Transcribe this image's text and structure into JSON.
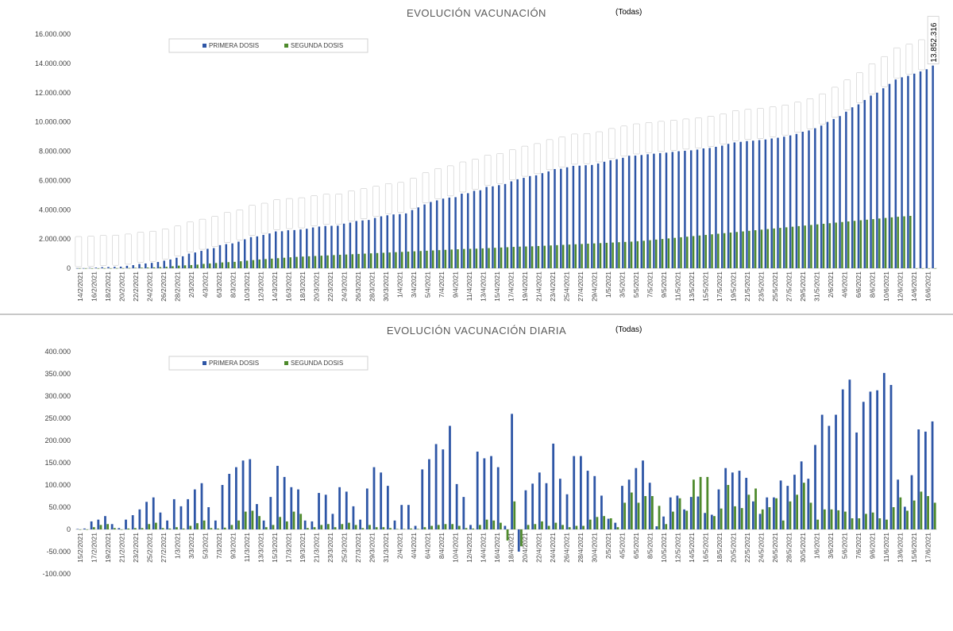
{
  "chart_data": [
    {
      "type": "bar",
      "title": "EVOLUCIÓN VACUNACIÓN",
      "filter": "(Todas)",
      "xlabel": "",
      "ylabel": "",
      "ylim": [
        0,
        16000000
      ],
      "y_ticks": [
        "0",
        "2.000.000",
        "4.000.000",
        "6.000.000",
        "8.000.000",
        "10.000.000",
        "12.000.000",
        "14.000.000",
        "16.000.000"
      ],
      "legend_position": "top-left",
      "grid": false,
      "last_label": "13.852.316",
      "x_tick_labels": [
        "14/2/2021",
        "16/2/2021",
        "18/2/2021",
        "20/2/2021",
        "22/2/2021",
        "24/2/2021",
        "26/2/2021",
        "28/2/2021",
        "2/3/2021",
        "4/3/2021",
        "6/3/2021",
        "8/3/2021",
        "10/3/2021",
        "12/3/2021",
        "14/3/2021",
        "16/3/2021",
        "18/3/2021",
        "20/3/2021",
        "22/3/2021",
        "24/3/2021",
        "26/3/2021",
        "28/3/2021",
        "30/3/2021",
        "1/4/2021",
        "3/4/2021",
        "5/4/2021",
        "7/4/2021",
        "9/4/2021",
        "11/4/2021",
        "13/4/2021",
        "15/4/2021",
        "17/4/2021",
        "19/4/2021",
        "21/4/2021",
        "23/4/2021",
        "25/4/2021",
        "27/4/2021",
        "29/4/2021",
        "1/5/2021",
        "3/5/2021",
        "5/5/2021",
        "7/5/2021",
        "9/5/2021",
        "11/5/2021",
        "13/5/2021",
        "15/5/2021",
        "17/5/2021",
        "19/5/2021",
        "21/5/2021",
        "23/5/2021",
        "25/5/2021",
        "27/5/2021",
        "29/5/2021",
        "31/5/2021",
        "2/6/2021",
        "4/6/2021",
        "6/6/2021",
        "8/6/2021",
        "10/6/2021",
        "12/6/2021",
        "14/6/2021",
        "16/6/2021"
      ],
      "categories_start": "14/2/2021",
      "categories_end": "17/6/2021",
      "series": [
        {
          "name": "PRIMERA DOSIS",
          "color": "#2e56a6",
          "values": [
            2000,
            5000,
            23000,
            45000,
            75000,
            85000,
            97000,
            110000,
            170000,
            215000,
            295000,
            330000,
            370000,
            430000,
            520000,
            600000,
            720000,
            820000,
            1000000,
            1080000,
            1190000,
            1330000,
            1380000,
            1580000,
            1650000,
            1700000,
            1820000,
            1980000,
            2130000,
            2180000,
            2280000,
            2380000,
            2520000,
            2530000,
            2600000,
            2610000,
            2650000,
            2700000,
            2790000,
            2850000,
            2890000,
            2900000,
            2910000,
            3050000,
            3120000,
            3230000,
            3270000,
            3300000,
            3440000,
            3550000,
            3620000,
            3680000,
            3700000,
            3750000,
            3980000,
            4160000,
            4360000,
            4530000,
            4640000,
            4760000,
            4830000,
            4860000,
            5100000,
            5130000,
            5290000,
            5330000,
            5560000,
            5600000,
            5680000,
            5760000,
            5940000,
            6080000,
            6180000,
            6300000,
            6350000,
            6500000,
            6620000,
            6780000,
            6800000,
            6900000,
            7000000,
            7010000,
            7040000,
            7060000,
            7160000,
            7280000,
            7380000,
            7450000,
            7550000,
            7690000,
            7700000,
            7740000,
            7790000,
            7830000,
            7870000,
            7900000,
            7950000,
            8000000,
            8030000,
            8060000,
            8110000,
            8190000,
            8220000,
            8300000,
            8380000,
            8500000,
            8600000,
            8640000,
            8690000,
            8720000,
            8760000,
            8800000,
            8870000,
            8920000,
            8990000,
            9080000,
            9180000,
            9330000,
            9420000,
            9570000,
            9750000,
            10000000,
            10200000,
            10400000,
            10700000,
            11000000,
            11200000,
            11500000,
            11800000,
            12000000,
            12300000,
            12600000,
            12900000,
            13050000,
            13150000,
            13300000,
            13450000,
            13600000,
            13852316
          ]
        },
        {
          "name": "SEGUNDA DOSIS",
          "color": "#4e8a2c",
          "values": [
            0,
            0,
            0,
            0,
            0,
            0,
            5000,
            5000,
            15000,
            30000,
            40000,
            50000,
            60000,
            80000,
            100000,
            140000,
            180000,
            200000,
            220000,
            250000,
            300000,
            330000,
            360000,
            400000,
            420000,
            440000,
            480000,
            520000,
            560000,
            600000,
            630000,
            660000,
            690000,
            720000,
            750000,
            780000,
            800000,
            820000,
            840000,
            860000,
            880000,
            900000,
            920000,
            940000,
            960000,
            980000,
            1000000,
            1020000,
            1040000,
            1060000,
            1080000,
            1100000,
            1120000,
            1140000,
            1160000,
            1180000,
            1200000,
            1220000,
            1240000,
            1260000,
            1280000,
            1300000,
            1320000,
            1330000,
            1340000,
            1360000,
            1380000,
            1400000,
            1420000,
            1440000,
            1460000,
            1480000,
            1490000,
            1500000,
            1520000,
            1540000,
            1560000,
            1580000,
            1600000,
            1620000,
            1640000,
            1660000,
            1680000,
            1700000,
            1720000,
            1740000,
            1760000,
            1780000,
            1800000,
            1820000,
            1850000,
            1880000,
            1920000,
            1960000,
            2000000,
            2040000,
            2080000,
            2120000,
            2160000,
            2200000,
            2240000,
            2280000,
            2320000,
            2360000,
            2400000,
            2440000,
            2480000,
            2520000,
            2560000,
            2600000,
            2640000,
            2680000,
            2720000,
            2760000,
            2800000,
            2840000,
            2880000,
            2920000,
            2960000,
            3000000,
            3040000,
            3080000,
            3120000,
            3160000,
            3200000,
            3240000,
            3280000,
            3320000,
            3360000,
            3400000,
            3440000,
            3480000,
            3520000,
            3550000,
            3580000
          ]
        }
      ]
    },
    {
      "type": "bar",
      "title": "EVOLUCIÓN VACUNACIÓN DIARIA",
      "filter": "(Todas)",
      "xlabel": "",
      "ylabel": "",
      "ylim": [
        -100000,
        400000
      ],
      "y_ticks": [
        "-100.000",
        "-50.000",
        "0",
        "50.000",
        "100.000",
        "150.000",
        "200.000",
        "250.000",
        "300.000",
        "350.000",
        "400.000"
      ],
      "legend_position": "top-left",
      "grid": false,
      "x_tick_labels": [
        "15/2/2021",
        "17/2/2021",
        "19/2/2021",
        "21/2/2021",
        "23/2/2021",
        "25/2/2021",
        "27/2/2021",
        "1/3/2021",
        "3/3/2021",
        "5/3/2021",
        "7/3/2021",
        "9/3/2021",
        "11/3/2021",
        "13/3/2021",
        "15/3/2021",
        "17/3/2021",
        "19/3/2021",
        "21/3/2021",
        "23/3/2021",
        "25/3/2021",
        "27/3/2021",
        "29/3/2021",
        "31/3/2021",
        "2/4/2021",
        "4/4/2021",
        "6/4/2021",
        "8/4/2021",
        "10/4/2021",
        "12/4/2021",
        "14/4/2021",
        "16/4/2021",
        "18/4/2021",
        "20/4/2021",
        "22/4/2021",
        "24/4/2021",
        "26/4/2021",
        "28/4/2021",
        "30/4/2021",
        "2/5/2021",
        "4/5/2021",
        "6/5/2021",
        "8/5/2021",
        "10/5/2021",
        "12/5/2021",
        "14/5/2021",
        "16/5/2021",
        "18/5/2021",
        "20/5/2021",
        "22/5/2021",
        "24/5/2021",
        "26/5/2021",
        "28/5/2021",
        "30/5/2021",
        "1/6/2021",
        "3/6/2021",
        "5/6/2021",
        "7/6/2021",
        "9/6/2021",
        "11/6/2021",
        "13/6/2021",
        "15/6/2021",
        "17/6/2021"
      ],
      "series": [
        {
          "name": "PRIMERA DOSIS",
          "color": "#2e56a6",
          "values": [
            1000,
            2000,
            18000,
            22000,
            30000,
            12000,
            3000,
            22000,
            32000,
            45000,
            62000,
            72000,
            38000,
            20000,
            68000,
            52000,
            68000,
            90000,
            104000,
            50000,
            20000,
            100000,
            125000,
            140000,
            155000,
            158000,
            57000,
            20000,
            73000,
            143000,
            118000,
            95000,
            90000,
            20000,
            18000,
            82000,
            78000,
            35000,
            95000,
            85000,
            52000,
            22000,
            92000,
            140000,
            128000,
            98000,
            20000,
            55000,
            55000,
            8000,
            135000,
            158000,
            192000,
            180000,
            233000,
            102000,
            73000,
            10000,
            175000,
            160000,
            165000,
            140000,
            8000,
            260000,
            -50000,
            88000,
            103000,
            128000,
            104000,
            193000,
            114000,
            79000,
            165000,
            165000,
            132000,
            120000,
            76000,
            24000,
            15000,
            98000,
            112000,
            138000,
            155000,
            105000,
            7000,
            29000,
            72000,
            76000,
            45000,
            73000,
            74000,
            37000,
            33000,
            90000,
            138000,
            128000,
            132000,
            116000,
            63000,
            35000,
            72000,
            72000,
            110000,
            98000,
            123000,
            153000,
            114000,
            190000,
            258000,
            233000,
            258000,
            315000,
            337000,
            218000,
            287000,
            310000,
            313000,
            352000,
            325000,
            112000,
            51000,
            122000,
            225000,
            220000,
            243000
          ]
        },
        {
          "name": "SEGUNDA DOSIS",
          "color": "#4e8a2c",
          "values": [
            0,
            0,
            5000,
            10000,
            12000,
            3000,
            0,
            2000,
            3000,
            3000,
            12000,
            15000,
            3000,
            2000,
            5000,
            2000,
            8000,
            14000,
            20000,
            3000,
            2000,
            4000,
            10000,
            20000,
            40000,
            42000,
            30000,
            5000,
            10000,
            28000,
            18000,
            40000,
            35000,
            3000,
            5000,
            10000,
            12000,
            5000,
            12000,
            15000,
            10000,
            3000,
            10000,
            5000,
            5000,
            3000,
            1000,
            1000,
            2000,
            1000,
            5000,
            8000,
            10000,
            12000,
            12000,
            8000,
            3000,
            2000,
            10000,
            22000,
            20000,
            15000,
            -25000,
            63000,
            -38000,
            10000,
            12000,
            18000,
            8000,
            15000,
            10000,
            5000,
            8000,
            8000,
            22000,
            28000,
            30000,
            25000,
            5000,
            60000,
            83000,
            60000,
            75000,
            75000,
            53000,
            12000,
            40000,
            70000,
            42000,
            112000,
            118000,
            118000,
            30000,
            47000,
            100000,
            52000,
            48000,
            78000,
            92000,
            45000,
            50000,
            70000,
            20000,
            63000,
            78000,
            105000,
            60000,
            22000,
            45000,
            45000,
            43000,
            40000,
            25000,
            25000,
            35000,
            38000,
            25000,
            22000,
            50000,
            72000,
            42000,
            65000,
            85000,
            75000,
            60000
          ]
        }
      ]
    }
  ]
}
